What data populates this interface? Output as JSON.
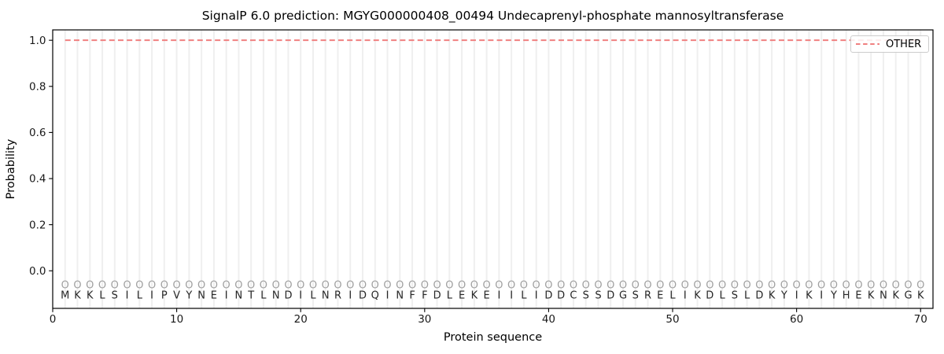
{
  "chart_data": {
    "type": "line",
    "title": "SignalP 6.0 prediction: MGYG000000408_00494 Undecaprenyl-phosphate mannosyltransferase",
    "xlabel": "Protein sequence",
    "ylabel": "Probability",
    "xlim": [
      0,
      71
    ],
    "ylim": [
      -0.163,
      1.045
    ],
    "x_ticks": [
      0,
      10,
      20,
      30,
      40,
      50,
      60,
      70
    ],
    "y_ticks": [
      0.0,
      0.2,
      0.4,
      0.6,
      0.8,
      1.0
    ],
    "grid": "vertical line at every residue position, light gray, horizontal grid off",
    "sequence": "MKKLSILIPVYNEINTLNDILNRIDQINFFDLEKEIILIDDCSSDGSRELIKDLSLDKYIKIYHEKNKGK",
    "sequence_length": 70,
    "position_marker_char": "O",
    "series": [
      {
        "name": "OTHER",
        "color": "#f08080",
        "linestyle": "dashed",
        "x_start": 1,
        "x_end": 70,
        "y_constant": 1.0
      }
    ],
    "legend": {
      "position": "upper-right",
      "entries": [
        {
          "label": "OTHER",
          "color": "#f08080",
          "linestyle": "dashed"
        }
      ]
    },
    "colors": {
      "grid": "#efefef",
      "spine": "#000000",
      "tick_text": "#191919",
      "sequence_text": "#262626",
      "marker": "#a0a0a0",
      "background": "#ffffff"
    }
  }
}
